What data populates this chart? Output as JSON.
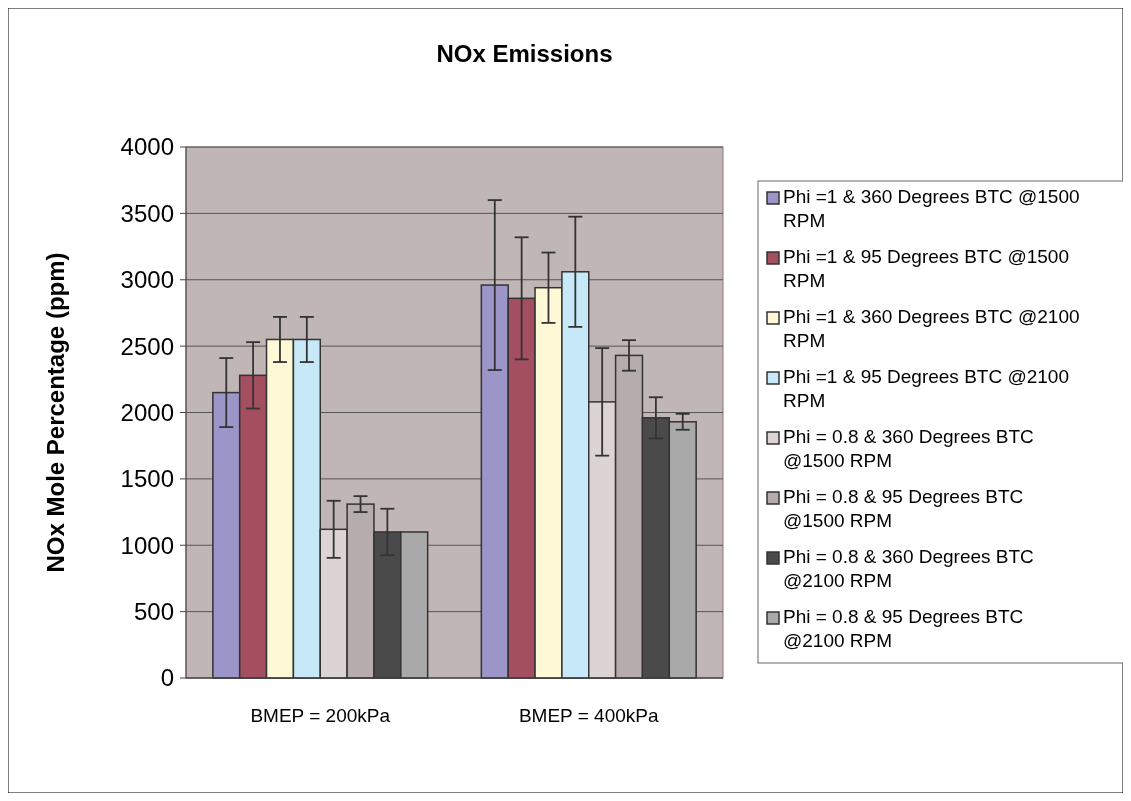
{
  "chart_data": {
    "type": "bar",
    "title": "NOx Emissions",
    "ylabel": "NOx Mole Percentage (ppm)",
    "categories": [
      "BMEP = 200kPa",
      "BMEP = 400kPa"
    ],
    "ylim": [
      0,
      4000
    ],
    "yticks": [
      0,
      500,
      1000,
      1500,
      2000,
      2500,
      3000,
      3500,
      4000
    ],
    "grid": "y",
    "legend": "right",
    "series": [
      {
        "name": "Phi =1 & 360 Degrees BTC @1500 RPM",
        "color": "#9c95c8",
        "values": [
          2150,
          2960
        ],
        "errors": [
          260,
          640
        ]
      },
      {
        "name": "Phi =1 & 95 Degrees BTC @1500 RPM",
        "color": "#a34f5f",
        "values": [
          2280,
          2860
        ],
        "errors": [
          250,
          460
        ]
      },
      {
        "name": "Phi =1 & 360 Degrees BTC @2100 RPM",
        "color": "#fff8d6",
        "values": [
          2550,
          2940
        ],
        "errors": [
          170,
          265
        ]
      },
      {
        "name": "Phi =1 & 95 Degrees BTC @2100 RPM",
        "color": "#c6e8f7",
        "values": [
          2550,
          3060
        ],
        "errors": [
          170,
          415
        ]
      },
      {
        "name": "Phi = 0.8 & 360 Degrees BTC @1500 RPM",
        "color": "#dcd4d3",
        "values": [
          1120,
          2080
        ],
        "errors": [
          215,
          405
        ]
      },
      {
        "name": "Phi = 0.8 & 95 Degrees BTC @1500 RPM",
        "color": "#b5acab",
        "values": [
          1310,
          2430
        ],
        "errors": [
          60,
          115
        ]
      },
      {
        "name": "Phi = 0.8 & 360 Degrees BTC @2100 RPM",
        "color": "#4a4a4a",
        "values": [
          1100,
          1960
        ],
        "errors": [
          175,
          155
        ]
      },
      {
        "name": "Phi = 0.8 & 95 Degrees BTC @2100 RPM",
        "color": "#a9a9a9",
        "values": [
          1100,
          1930
        ],
        "errors": [
          null,
          60
        ]
      }
    ]
  }
}
